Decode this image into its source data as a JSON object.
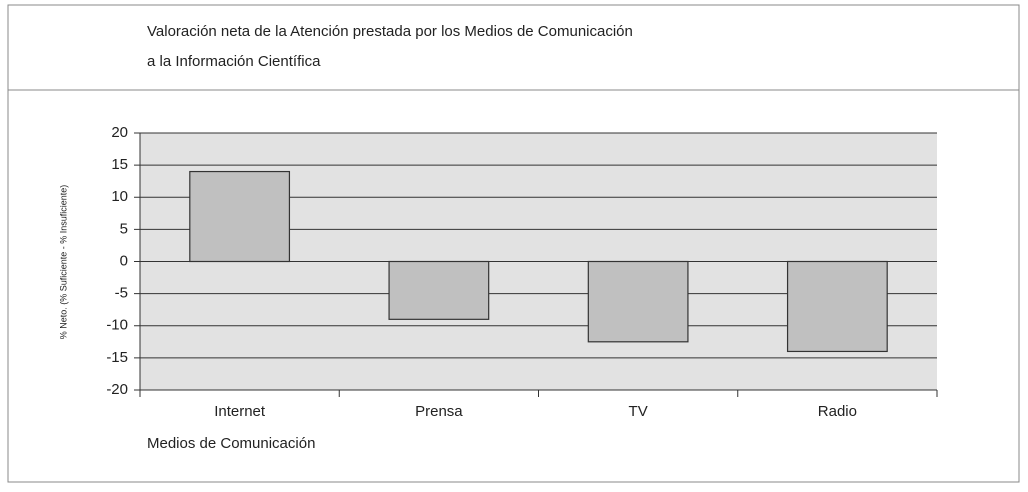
{
  "chart_data": {
    "type": "bar",
    "title": [
      "Valoración neta de la Atención prestada por los Medios de Comunicación",
      "a la Información Científica"
    ],
    "ylabel": "% Neto. (% Suficiente - % Insuficiente)",
    "xlabel": "Medios de Comunicación",
    "categories": [
      "Internet",
      "Prensa",
      "TV",
      "Radio"
    ],
    "values": [
      14,
      -9,
      -12.5,
      -14
    ],
    "color": "#c0c0c0",
    "ylim": [
      -20,
      20
    ],
    "yticks": [
      -20,
      -15,
      -10,
      -5,
      0,
      5,
      10,
      15,
      20
    ],
    "grid": true
  }
}
